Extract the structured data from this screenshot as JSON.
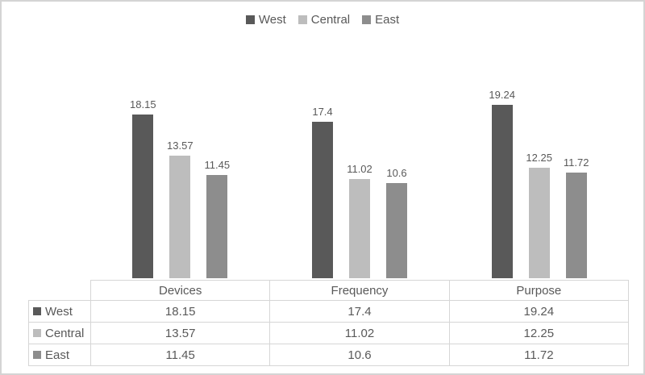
{
  "chart_data": {
    "type": "bar",
    "title": "",
    "xlabel": "",
    "ylabel": "",
    "categories": [
      "Devices",
      "Frequency",
      "Purpose"
    ],
    "series": [
      {
        "name": "West",
        "color": "#595959",
        "values": [
          18.15,
          17.4,
          19.24
        ]
      },
      {
        "name": "Central",
        "color": "#bdbdbd",
        "values": [
          13.57,
          11.02,
          12.25
        ]
      },
      {
        "name": "East",
        "color": "#8d8d8d",
        "values": [
          11.45,
          10.6,
          11.72
        ]
      }
    ],
    "ylim": [
      0,
      19.24
    ],
    "grid": false,
    "legend_position": "top",
    "data_labels": true,
    "data_table_shown": true
  },
  "colors": {
    "label_text": "#595959",
    "table_text": "#595959",
    "table_border": "#d6d6d6",
    "frame_border": "#d4d4d4",
    "background": "#ffffff"
  }
}
